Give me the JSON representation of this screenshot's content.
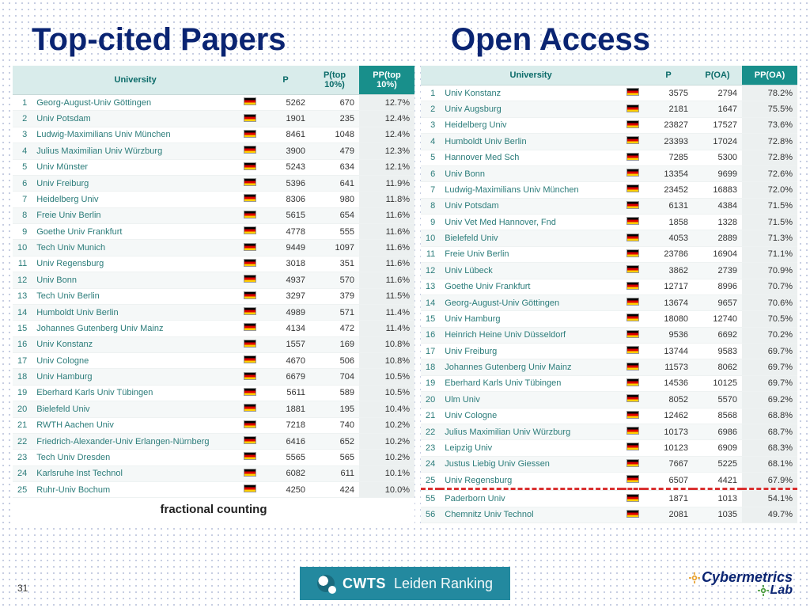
{
  "titles": {
    "left": "Top-cited Papers",
    "right": "Open Access"
  },
  "caption_left": "fractional counting",
  "page_number": "31",
  "cwts": {
    "bold": "CWTS",
    "light": "Leiden Ranking"
  },
  "cyber": {
    "line1": "Cybermetrics",
    "line2": "Lab"
  },
  "table_left": {
    "headers": {
      "uni": "University",
      "p": "P",
      "p10": "P(top 10%)",
      "pp10": "PP(top 10%)"
    },
    "rows": [
      {
        "r": 1,
        "u": "Georg-August-Univ Göttingen",
        "p": "5262",
        "p10": "670",
        "pp": "12.7%"
      },
      {
        "r": 2,
        "u": "Univ Potsdam",
        "p": "1901",
        "p10": "235",
        "pp": "12.4%"
      },
      {
        "r": 3,
        "u": "Ludwig-Maximilians Univ München",
        "p": "8461",
        "p10": "1048",
        "pp": "12.4%"
      },
      {
        "r": 4,
        "u": "Julius Maximilian Univ Würzburg",
        "p": "3900",
        "p10": "479",
        "pp": "12.3%"
      },
      {
        "r": 5,
        "u": "Univ Münster",
        "p": "5243",
        "p10": "634",
        "pp": "12.1%"
      },
      {
        "r": 6,
        "u": "Univ Freiburg",
        "p": "5396",
        "p10": "641",
        "pp": "11.9%"
      },
      {
        "r": 7,
        "u": "Heidelberg Univ",
        "p": "8306",
        "p10": "980",
        "pp": "11.8%"
      },
      {
        "r": 8,
        "u": "Freie Univ Berlin",
        "p": "5615",
        "p10": "654",
        "pp": "11.6%"
      },
      {
        "r": 9,
        "u": "Goethe Univ Frankfurt",
        "p": "4778",
        "p10": "555",
        "pp": "11.6%"
      },
      {
        "r": 10,
        "u": "Tech Univ Munich",
        "p": "9449",
        "p10": "1097",
        "pp": "11.6%"
      },
      {
        "r": 11,
        "u": "Univ Regensburg",
        "p": "3018",
        "p10": "351",
        "pp": "11.6%"
      },
      {
        "r": 12,
        "u": "Univ Bonn",
        "p": "4937",
        "p10": "570",
        "pp": "11.6%"
      },
      {
        "r": 13,
        "u": "Tech Univ Berlin",
        "p": "3297",
        "p10": "379",
        "pp": "11.5%"
      },
      {
        "r": 14,
        "u": "Humboldt Univ Berlin",
        "p": "4989",
        "p10": "571",
        "pp": "11.4%"
      },
      {
        "r": 15,
        "u": "Johannes Gutenberg Univ Mainz",
        "p": "4134",
        "p10": "472",
        "pp": "11.4%"
      },
      {
        "r": 16,
        "u": "Univ Konstanz",
        "p": "1557",
        "p10": "169",
        "pp": "10.8%"
      },
      {
        "r": 17,
        "u": "Univ Cologne",
        "p": "4670",
        "p10": "506",
        "pp": "10.8%"
      },
      {
        "r": 18,
        "u": "Univ Hamburg",
        "p": "6679",
        "p10": "704",
        "pp": "10.5%"
      },
      {
        "r": 19,
        "u": "Eberhard Karls Univ Tübingen",
        "p": "5611",
        "p10": "589",
        "pp": "10.5%"
      },
      {
        "r": 20,
        "u": "Bielefeld Univ",
        "p": "1881",
        "p10": "195",
        "pp": "10.4%"
      },
      {
        "r": 21,
        "u": "RWTH Aachen Univ",
        "p": "7218",
        "p10": "740",
        "pp": "10.2%"
      },
      {
        "r": 22,
        "u": "Friedrich-Alexander-Univ Erlangen-Nürnberg",
        "p": "6416",
        "p10": "652",
        "pp": "10.2%"
      },
      {
        "r": 23,
        "u": "Tech Univ Dresden",
        "p": "5565",
        "p10": "565",
        "pp": "10.2%"
      },
      {
        "r": 24,
        "u": "Karlsruhe Inst Technol",
        "p": "6082",
        "p10": "611",
        "pp": "10.1%"
      },
      {
        "r": 25,
        "u": "Ruhr-Univ Bochum",
        "p": "4250",
        "p10": "424",
        "pp": "10.0%"
      }
    ]
  },
  "table_right": {
    "headers": {
      "uni": "University",
      "p": "P",
      "poa": "P(OA)",
      "ppoa": "PP(OA)"
    },
    "rows": [
      {
        "r": 1,
        "u": "Univ Konstanz",
        "p": "3575",
        "poa": "2794",
        "pp": "78.2%"
      },
      {
        "r": 2,
        "u": "Univ Augsburg",
        "p": "2181",
        "poa": "1647",
        "pp": "75.5%"
      },
      {
        "r": 3,
        "u": "Heidelberg Univ",
        "p": "23827",
        "poa": "17527",
        "pp": "73.6%"
      },
      {
        "r": 4,
        "u": "Humboldt Univ Berlin",
        "p": "23393",
        "poa": "17024",
        "pp": "72.8%"
      },
      {
        "r": 5,
        "u": "Hannover Med Sch",
        "p": "7285",
        "poa": "5300",
        "pp": "72.8%"
      },
      {
        "r": 6,
        "u": "Univ Bonn",
        "p": "13354",
        "poa": "9699",
        "pp": "72.6%"
      },
      {
        "r": 7,
        "u": "Ludwig-Maximilians Univ München",
        "p": "23452",
        "poa": "16883",
        "pp": "72.0%"
      },
      {
        "r": 8,
        "u": "Univ Potsdam",
        "p": "6131",
        "poa": "4384",
        "pp": "71.5%"
      },
      {
        "r": 9,
        "u": "Univ Vet Med Hannover, Fnd",
        "p": "1858",
        "poa": "1328",
        "pp": "71.5%"
      },
      {
        "r": 10,
        "u": "Bielefeld Univ",
        "p": "4053",
        "poa": "2889",
        "pp": "71.3%"
      },
      {
        "r": 11,
        "u": "Freie Univ Berlin",
        "p": "23786",
        "poa": "16904",
        "pp": "71.1%"
      },
      {
        "r": 12,
        "u": "Univ Lübeck",
        "p": "3862",
        "poa": "2739",
        "pp": "70.9%"
      },
      {
        "r": 13,
        "u": "Goethe Univ Frankfurt",
        "p": "12717",
        "poa": "8996",
        "pp": "70.7%"
      },
      {
        "r": 14,
        "u": "Georg-August-Univ Göttingen",
        "p": "13674",
        "poa": "9657",
        "pp": "70.6%"
      },
      {
        "r": 15,
        "u": "Univ Hamburg",
        "p": "18080",
        "poa": "12740",
        "pp": "70.5%"
      },
      {
        "r": 16,
        "u": "Heinrich Heine Univ Düsseldorf",
        "p": "9536",
        "poa": "6692",
        "pp": "70.2%"
      },
      {
        "r": 17,
        "u": "Univ Freiburg",
        "p": "13744",
        "poa": "9583",
        "pp": "69.7%"
      },
      {
        "r": 18,
        "u": "Johannes Gutenberg Univ Mainz",
        "p": "11573",
        "poa": "8062",
        "pp": "69.7%"
      },
      {
        "r": 19,
        "u": "Eberhard Karls Univ Tübingen",
        "p": "14536",
        "poa": "10125",
        "pp": "69.7%"
      },
      {
        "r": 20,
        "u": "Ulm Univ",
        "p": "8052",
        "poa": "5570",
        "pp": "69.2%"
      },
      {
        "r": 21,
        "u": "Univ Cologne",
        "p": "12462",
        "poa": "8568",
        "pp": "68.8%"
      },
      {
        "r": 22,
        "u": "Julius Maximilian Univ Würzburg",
        "p": "10173",
        "poa": "6986",
        "pp": "68.7%"
      },
      {
        "r": 23,
        "u": "Leipzig Univ",
        "p": "10123",
        "poa": "6909",
        "pp": "68.3%"
      },
      {
        "r": 24,
        "u": "Justus Liebig Univ Giessen",
        "p": "7667",
        "poa": "5225",
        "pp": "68.1%"
      },
      {
        "r": 25,
        "u": "Univ Regensburg",
        "p": "6507",
        "poa": "4421",
        "pp": "67.9%"
      }
    ],
    "rows_after_divider": [
      {
        "r": 55,
        "u": "Paderborn Univ",
        "p": "1871",
        "poa": "1013",
        "pp": "54.1%"
      },
      {
        "r": 56,
        "u": "Chemnitz Univ Technol",
        "p": "2081",
        "poa": "1035",
        "pp": "49.7%"
      }
    ]
  },
  "styling": {
    "title_color": "#0a2472",
    "header_bg": "#d9eceb",
    "header_fg": "#0b6b69",
    "highlight_bg": "#188f8b",
    "link_color": "#2b7c7a",
    "divider_color": "#d93030",
    "cwts_bg": "#23899f"
  }
}
